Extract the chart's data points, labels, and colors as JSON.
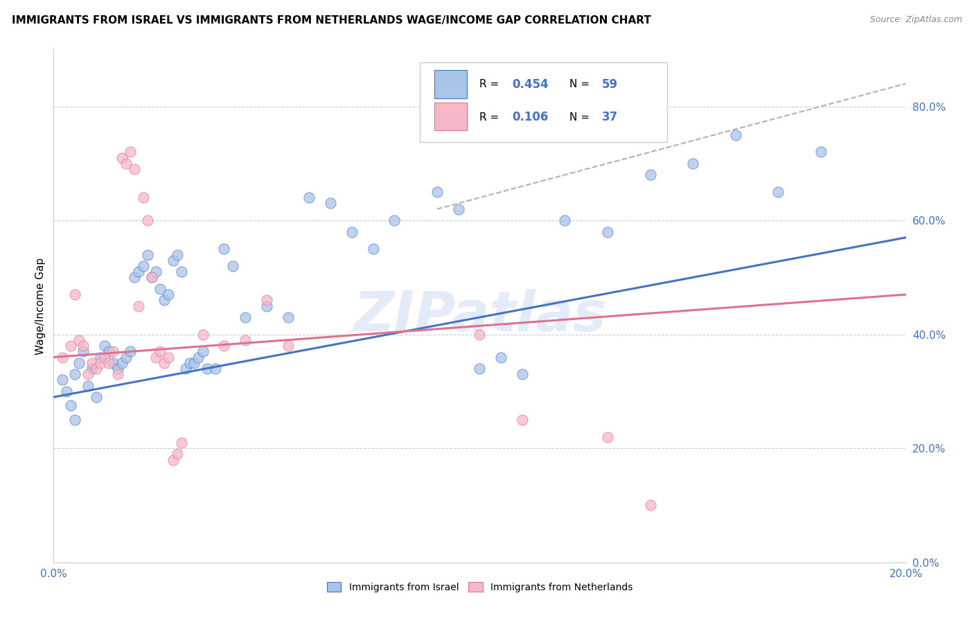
{
  "title": "IMMIGRANTS FROM ISRAEL VS IMMIGRANTS FROM NETHERLANDS WAGE/INCOME GAP CORRELATION CHART",
  "source": "Source: ZipAtlas.com",
  "ylabel": "Wage/Income Gap",
  "watermark": "ZIPatlas",
  "israel_color": "#a8c4e8",
  "netherlands_color": "#f4b8c8",
  "israel_line_color": "#4472c4",
  "netherlands_line_color": "#e07090",
  "dashed_line_color": "#b0b0b0",
  "israel_scatter": [
    [
      0.2,
      32.0
    ],
    [
      0.4,
      27.5
    ],
    [
      0.5,
      33.0
    ],
    [
      0.6,
      35.0
    ],
    [
      0.7,
      37.0
    ],
    [
      0.8,
      31.0
    ],
    [
      0.9,
      34.0
    ],
    [
      1.0,
      29.0
    ],
    [
      1.1,
      36.0
    ],
    [
      1.2,
      38.0
    ],
    [
      1.3,
      37.0
    ],
    [
      1.4,
      35.0
    ],
    [
      1.5,
      34.0
    ],
    [
      1.6,
      35.0
    ],
    [
      1.7,
      36.0
    ],
    [
      1.8,
      37.0
    ],
    [
      1.9,
      50.0
    ],
    [
      2.0,
      51.0
    ],
    [
      2.1,
      52.0
    ],
    [
      2.2,
      54.0
    ],
    [
      2.3,
      50.0
    ],
    [
      2.4,
      51.0
    ],
    [
      2.5,
      48.0
    ],
    [
      2.6,
      46.0
    ],
    [
      2.7,
      47.0
    ],
    [
      2.8,
      53.0
    ],
    [
      2.9,
      54.0
    ],
    [
      3.0,
      51.0
    ],
    [
      3.1,
      34.0
    ],
    [
      3.2,
      35.0
    ],
    [
      3.3,
      35.0
    ],
    [
      3.4,
      36.0
    ],
    [
      3.5,
      37.0
    ],
    [
      3.6,
      34.0
    ],
    [
      3.8,
      34.0
    ],
    [
      4.0,
      55.0
    ],
    [
      4.2,
      52.0
    ],
    [
      4.5,
      43.0
    ],
    [
      5.0,
      45.0
    ],
    [
      5.5,
      43.0
    ],
    [
      6.0,
      64.0
    ],
    [
      6.5,
      63.0
    ],
    [
      7.0,
      58.0
    ],
    [
      7.5,
      55.0
    ],
    [
      8.0,
      60.0
    ],
    [
      9.0,
      65.0
    ],
    [
      9.5,
      62.0
    ],
    [
      10.0,
      34.0
    ],
    [
      10.5,
      36.0
    ],
    [
      11.0,
      33.0
    ],
    [
      12.0,
      60.0
    ],
    [
      13.0,
      58.0
    ],
    [
      14.0,
      68.0
    ],
    [
      15.0,
      70.0
    ],
    [
      16.0,
      75.0
    ],
    [
      17.0,
      65.0
    ],
    [
      18.0,
      72.0
    ],
    [
      0.3,
      30.0
    ],
    [
      0.5,
      25.0
    ]
  ],
  "netherlands_scatter": [
    [
      0.2,
      36.0
    ],
    [
      0.4,
      38.0
    ],
    [
      0.5,
      47.0
    ],
    [
      0.6,
      39.0
    ],
    [
      0.7,
      38.0
    ],
    [
      0.8,
      33.0
    ],
    [
      0.9,
      35.0
    ],
    [
      1.0,
      34.0
    ],
    [
      1.1,
      35.0
    ],
    [
      1.2,
      36.0
    ],
    [
      1.3,
      35.0
    ],
    [
      1.4,
      37.0
    ],
    [
      1.5,
      33.0
    ],
    [
      1.6,
      71.0
    ],
    [
      1.7,
      70.0
    ],
    [
      1.8,
      72.0
    ],
    [
      1.9,
      69.0
    ],
    [
      2.0,
      45.0
    ],
    [
      2.1,
      64.0
    ],
    [
      2.2,
      60.0
    ],
    [
      2.3,
      50.0
    ],
    [
      2.4,
      36.0
    ],
    [
      2.5,
      37.0
    ],
    [
      2.6,
      35.0
    ],
    [
      2.7,
      36.0
    ],
    [
      2.8,
      18.0
    ],
    [
      2.9,
      19.0
    ],
    [
      3.0,
      21.0
    ],
    [
      3.5,
      40.0
    ],
    [
      4.0,
      38.0
    ],
    [
      4.5,
      39.0
    ],
    [
      5.0,
      46.0
    ],
    [
      5.5,
      38.0
    ],
    [
      10.0,
      40.0
    ],
    [
      11.0,
      25.0
    ],
    [
      13.0,
      22.0
    ],
    [
      14.0,
      10.0
    ]
  ],
  "israel_trend_x": [
    0.0,
    20.0
  ],
  "israel_trend_y": [
    29.0,
    57.0
  ],
  "netherlands_trend_x": [
    0.0,
    20.0
  ],
  "netherlands_trend_y": [
    36.0,
    47.0
  ],
  "dashed_trend_x": [
    9.0,
    20.0
  ],
  "dashed_trend_y": [
    62.0,
    84.0
  ],
  "xlim": [
    0.0,
    20.0
  ],
  "ylim": [
    0.0,
    90.0
  ],
  "yticks": [
    0.0,
    20.0,
    40.0,
    60.0,
    80.0
  ],
  "ytick_labels": [
    "0.0%",
    "20.0%",
    "40.0%",
    "60.0%",
    "80.0%"
  ]
}
